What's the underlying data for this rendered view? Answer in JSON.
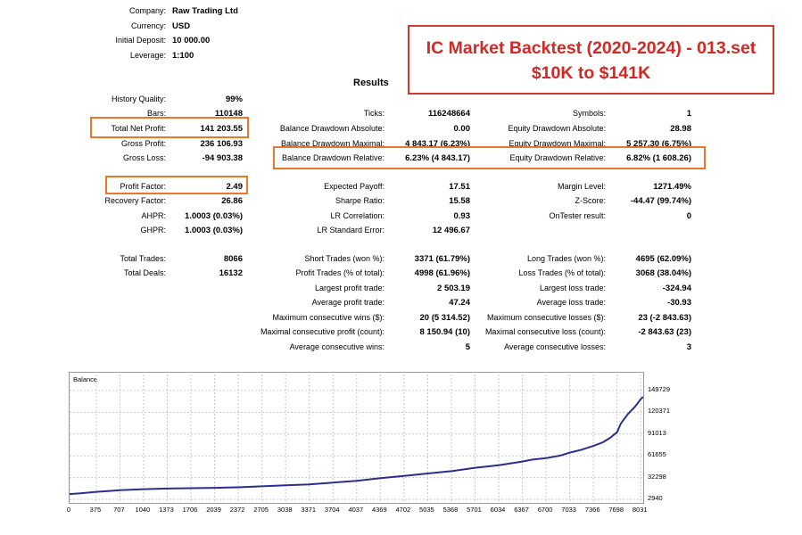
{
  "header": {
    "company": {
      "label": "Company:",
      "value": "Raw Trading Ltd"
    },
    "currency": {
      "label": "Currency:",
      "value": "USD"
    },
    "initial_deposit": {
      "label": "Initial Deposit:",
      "value": "10 000.00"
    },
    "leverage": {
      "label": "Leverage:",
      "value": "1:100"
    }
  },
  "banner": {
    "line1": "IC Market Backtest (2020-2024) - 013.set",
    "line2": "$10K to $141K"
  },
  "results_title": "Results",
  "col1": [
    {
      "label": "History Quality:",
      "value": "99%"
    },
    {
      "label": "Bars:",
      "value": "110148"
    },
    {
      "label": "Total Net Profit:",
      "value": "141 203.55"
    },
    {
      "label": "Gross Profit:",
      "value": "236 106.93"
    },
    {
      "label": "Gross Loss:",
      "value": "-94 903.38"
    },
    {
      "label": "Profit Factor:",
      "value": "2.49"
    },
    {
      "label": "Recovery Factor:",
      "value": "26.86"
    },
    {
      "label": "AHPR:",
      "value": "1.0003 (0.03%)"
    },
    {
      "label": "GHPR:",
      "value": "1.0003 (0.03%)"
    },
    {
      "label": "Total Trades:",
      "value": "8066"
    },
    {
      "label": "Total Deals:",
      "value": "16132"
    }
  ],
  "col2": [
    {
      "label": "Ticks:",
      "value": "116248664"
    },
    {
      "label": "Balance Drawdown Absolute:",
      "value": "0.00"
    },
    {
      "label": "Balance Drawdown Maximal:",
      "value": "4 843.17 (6.23%)"
    },
    {
      "label": "Balance Drawdown Relative:",
      "value": "6.23% (4 843.17)"
    },
    {
      "label": "Expected Payoff:",
      "value": "17.51"
    },
    {
      "label": "Sharpe Ratio:",
      "value": "15.58"
    },
    {
      "label": "LR Correlation:",
      "value": "0.93"
    },
    {
      "label": "LR Standard Error:",
      "value": "12 496.67"
    },
    {
      "label": "Short Trades (won %):",
      "value": "3371 (61.79%)"
    },
    {
      "label": "Profit Trades (% of total):",
      "value": "4998 (61.96%)"
    },
    {
      "label": "Largest profit trade:",
      "value": "2 503.19"
    },
    {
      "label": "Average profit trade:",
      "value": "47.24"
    },
    {
      "label": "Maximum consecutive wins ($):",
      "value": "20 (5 314.52)"
    },
    {
      "label": "Maximal consecutive profit (count):",
      "value": "8 150.94 (10)"
    },
    {
      "label": "Average consecutive wins:",
      "value": "5"
    }
  ],
  "col3": [
    {
      "label": "Symbols:",
      "value": "1"
    },
    {
      "label": "Equity Drawdown Absolute:",
      "value": "28.98"
    },
    {
      "label": "Equity Drawdown Maximal:",
      "value": "5 257.30 (6.75%)"
    },
    {
      "label": "Equity Drawdown Relative:",
      "value": "6.82% (1 608.26)"
    },
    {
      "label": "Margin Level:",
      "value": "1271.49%"
    },
    {
      "label": "Z-Score:",
      "value": "-44.47 (99.74%)"
    },
    {
      "label": "OnTester result:",
      "value": "0"
    },
    {
      "label": "Long Trades (won %):",
      "value": "4695 (62.09%)"
    },
    {
      "label": "Loss Trades (% of total):",
      "value": "3068 (38.04%)"
    },
    {
      "label": "Largest loss trade:",
      "value": "-324.94"
    },
    {
      "label": "Average loss trade:",
      "value": "-30.93"
    },
    {
      "label": "Maximum consecutive losses ($):",
      "value": "23 (-2 843.63)"
    },
    {
      "label": "Maximal consecutive loss (count):",
      "value": "-2 843.63 (23)"
    },
    {
      "label": "Average consecutive losses:",
      "value": "3"
    }
  ],
  "colors": {
    "highlight": "#e8782a",
    "banner": "#cf2a26",
    "line": "#2b2f8c"
  },
  "chart_data": {
    "type": "line",
    "title": "Balance",
    "x_ticks": [
      "0",
      "375",
      "707",
      "1040",
      "1373",
      "1706",
      "2039",
      "2372",
      "2705",
      "3038",
      "3371",
      "3704",
      "4037",
      "4369",
      "4702",
      "5035",
      "5368",
      "5701",
      "6034",
      "6367",
      "6700",
      "7033",
      "7366",
      "7698",
      "8031"
    ],
    "y_ticks": [
      "149729",
      "120371",
      "91013",
      "61655",
      "32298",
      "2940"
    ],
    "ylim": [
      2940,
      149729
    ],
    "xlim": [
      0,
      8066
    ],
    "grid": true,
    "series": [
      {
        "x": [
          0,
          150,
          375,
          707,
          1040,
          1373,
          1706,
          2039,
          2372,
          2705,
          3038,
          3371,
          3704,
          4037,
          4369,
          4702,
          5035,
          5368,
          5701,
          6034,
          6367,
          6500,
          6700,
          6900,
          7033,
          7200,
          7366,
          7500,
          7600,
          7698,
          7750,
          7850,
          7950,
          8031,
          8066
        ],
        "y": [
          10000,
          11000,
          13000,
          15200,
          16700,
          17500,
          18000,
          18500,
          19200,
          20500,
          21800,
          23200,
          25500,
          28000,
          31500,
          34500,
          37800,
          41000,
          45500,
          49000,
          54000,
          56500,
          58500,
          62000,
          66000,
          70000,
          75000,
          80000,
          86000,
          93500,
          105000,
          118000,
          128000,
          138000,
          141200
        ]
      }
    ]
  }
}
